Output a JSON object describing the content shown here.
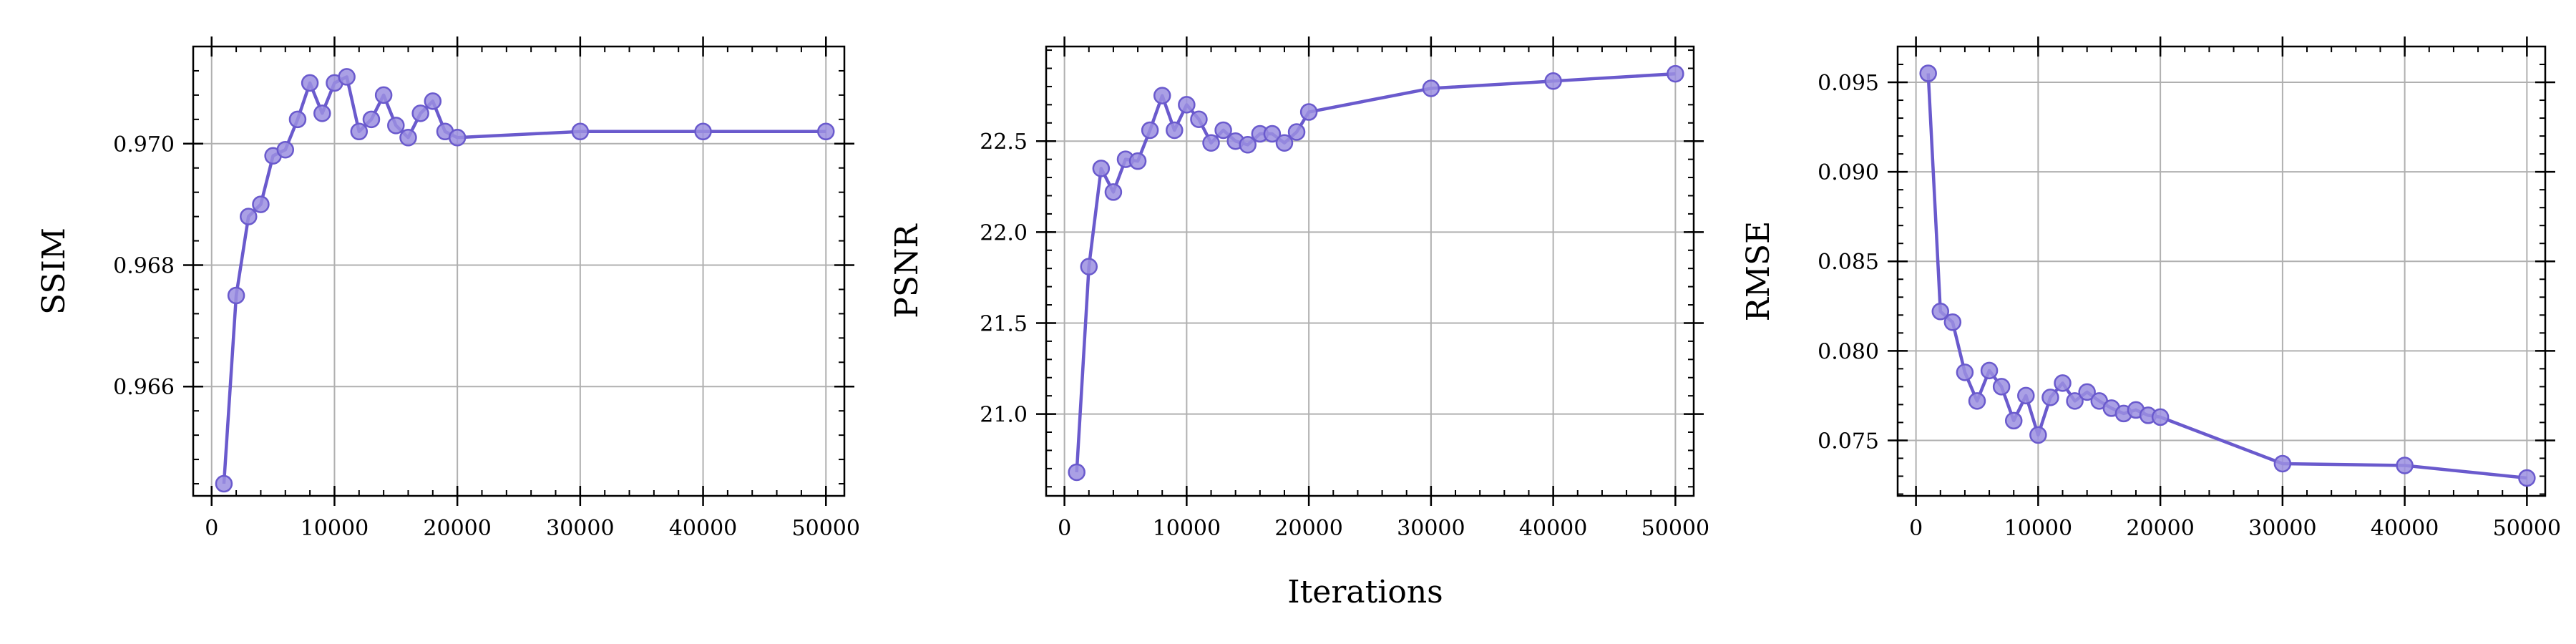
{
  "figure": {
    "xlabel": "Iterations"
  },
  "style": {
    "line_color": "#6a5acd",
    "marker_fill": "#9b8fe0",
    "grid_color": "#b0b0b0"
  },
  "chart_data": [
    {
      "type": "line",
      "ylabel": "SSIM",
      "xlim": [
        -1500,
        51500
      ],
      "ylim": [
        0.9642,
        0.9716
      ],
      "xticks": [
        0,
        10000,
        20000,
        30000,
        40000,
        50000
      ],
      "xtick_labels": [
        "0",
        "10000",
        "20000",
        "30000",
        "40000",
        "50000"
      ],
      "yticks": [
        0.966,
        0.968,
        0.97
      ],
      "ytick_labels": [
        "0.966",
        "0.968",
        "0.970"
      ],
      "grid": true,
      "series": [
        {
          "x": [
            1000,
            2000,
            3000,
            4000,
            5000,
            6000,
            7000,
            8000,
            9000,
            10000,
            11000,
            12000,
            13000,
            14000,
            15000,
            16000,
            17000,
            18000,
            19000,
            20000,
            30000,
            40000,
            50000
          ],
          "y": [
            0.9644,
            0.9675,
            0.9688,
            0.969,
            0.9698,
            0.9699,
            0.9704,
            0.971,
            0.9705,
            0.971,
            0.9711,
            0.9702,
            0.9704,
            0.9708,
            0.9703,
            0.9701,
            0.9705,
            0.9707,
            0.9702,
            0.9701,
            0.9702,
            0.9702,
            0.9702
          ]
        }
      ]
    },
    {
      "type": "line",
      "ylabel": "PSNR",
      "xlim": [
        -1500,
        51500
      ],
      "ylim": [
        20.55,
        23.02
      ],
      "xticks": [
        0,
        10000,
        20000,
        30000,
        40000,
        50000
      ],
      "xtick_labels": [
        "0",
        "10000",
        "20000",
        "30000",
        "40000",
        "50000"
      ],
      "yticks": [
        21.0,
        21.5,
        22.0,
        22.5
      ],
      "ytick_labels": [
        "21.0",
        "21.5",
        "22.0",
        "22.5"
      ],
      "grid": true,
      "series": [
        {
          "x": [
            1000,
            2000,
            3000,
            4000,
            5000,
            6000,
            7000,
            8000,
            9000,
            10000,
            11000,
            12000,
            13000,
            14000,
            15000,
            16000,
            17000,
            18000,
            19000,
            20000,
            30000,
            40000,
            50000
          ],
          "y": [
            20.68,
            21.81,
            22.35,
            22.22,
            22.4,
            22.39,
            22.56,
            22.75,
            22.56,
            22.7,
            22.62,
            22.49,
            22.56,
            22.5,
            22.48,
            22.54,
            22.54,
            22.49,
            22.55,
            22.66,
            22.79,
            22.83,
            22.87
          ]
        }
      ]
    },
    {
      "type": "line",
      "ylabel": "RMSE",
      "xlim": [
        -1500,
        51500
      ],
      "ylim": [
        0.0719,
        0.097
      ],
      "xticks": [
        0,
        10000,
        20000,
        30000,
        40000,
        50000
      ],
      "xtick_labels": [
        "0",
        "10000",
        "20000",
        "30000",
        "40000",
        "50000"
      ],
      "yticks": [
        0.075,
        0.08,
        0.085,
        0.09,
        0.095
      ],
      "ytick_labels": [
        "0.075",
        "0.080",
        "0.085",
        "0.090",
        "0.095"
      ],
      "grid": true,
      "series": [
        {
          "x": [
            1000,
            2000,
            3000,
            4000,
            5000,
            6000,
            7000,
            8000,
            9000,
            10000,
            11000,
            12000,
            13000,
            14000,
            15000,
            16000,
            17000,
            18000,
            19000,
            20000,
            30000,
            40000,
            50000
          ],
          "y": [
            0.0955,
            0.0822,
            0.0816,
            0.0788,
            0.0772,
            0.0789,
            0.078,
            0.0761,
            0.0775,
            0.0753,
            0.0774,
            0.0782,
            0.0772,
            0.0777,
            0.0772,
            0.0768,
            0.0765,
            0.0767,
            0.0764,
            0.0763,
            0.0737,
            0.0736,
            0.0729
          ]
        }
      ]
    }
  ]
}
